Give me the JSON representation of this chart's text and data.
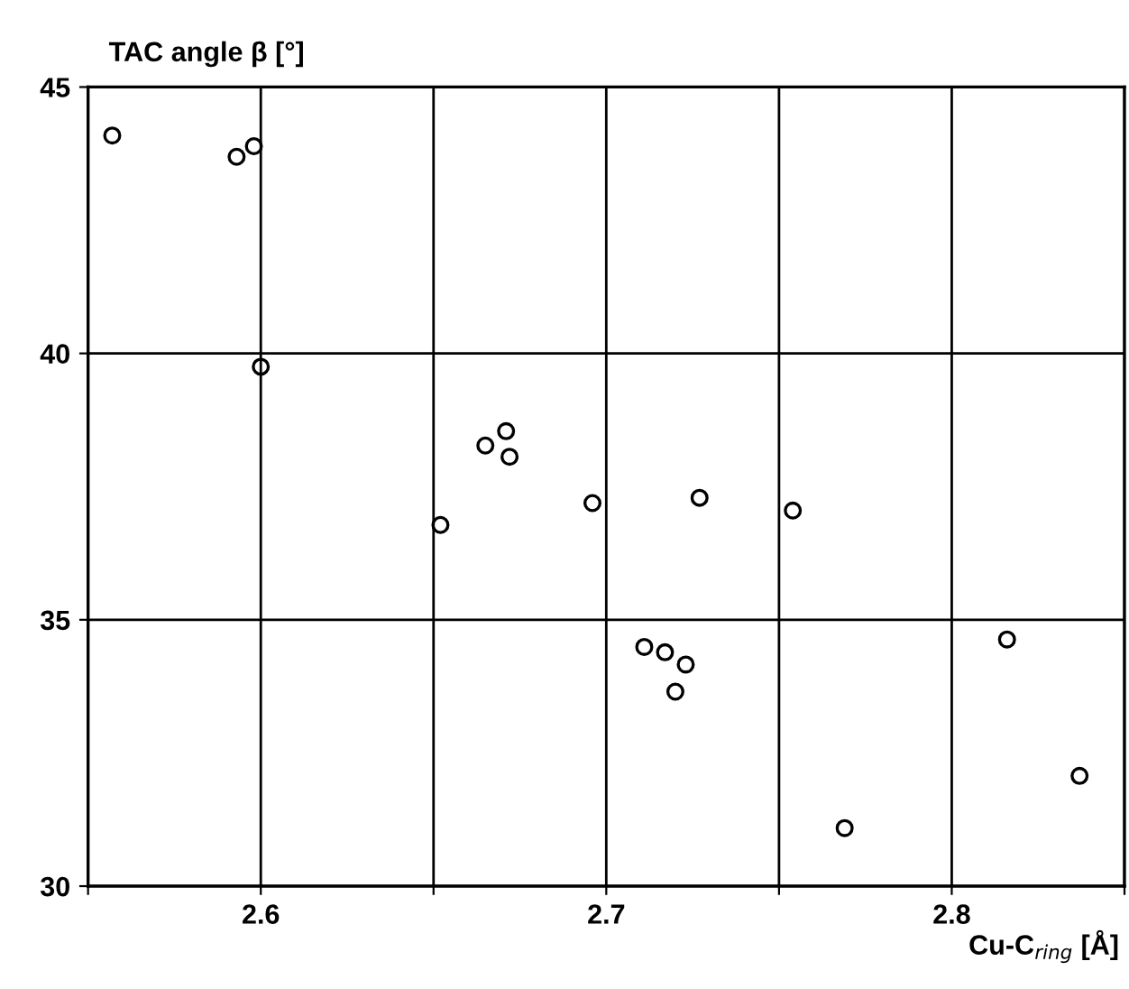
{
  "chart_data": {
    "type": "scatter",
    "ylabel": "TAC angle β [°]",
    "xlabel": "Cu-C$_{ring}$ [Å]",
    "x": [
      2.557,
      2.593,
      2.598,
      2.6,
      2.665,
      2.671,
      2.672,
      2.652,
      2.696,
      2.727,
      2.754,
      2.711,
      2.717,
      2.723,
      2.72,
      2.769,
      2.816,
      2.837
    ],
    "values": [
      44.09,
      43.69,
      43.89,
      39.75,
      38.27,
      38.54,
      38.06,
      36.78,
      37.19,
      37.29,
      37.05,
      34.49,
      34.39,
      34.16,
      33.65,
      31.09,
      34.63,
      32.07
    ],
    "color": "#000000",
    "marker": "circle",
    "grid": true,
    "xlim": [
      2.55,
      2.85
    ],
    "xticks": [
      {
        "value": 2.55,
        "label": null
      },
      2.6,
      {
        "value": 2.65,
        "label": null
      },
      2.7,
      {
        "value": 2.75,
        "label": null
      },
      2.8,
      {
        "value": 2.85,
        "label": null
      }
    ],
    "ylim": [
      30,
      45
    ],
    "yticks": [
      30,
      35,
      40,
      45
    ]
  }
}
